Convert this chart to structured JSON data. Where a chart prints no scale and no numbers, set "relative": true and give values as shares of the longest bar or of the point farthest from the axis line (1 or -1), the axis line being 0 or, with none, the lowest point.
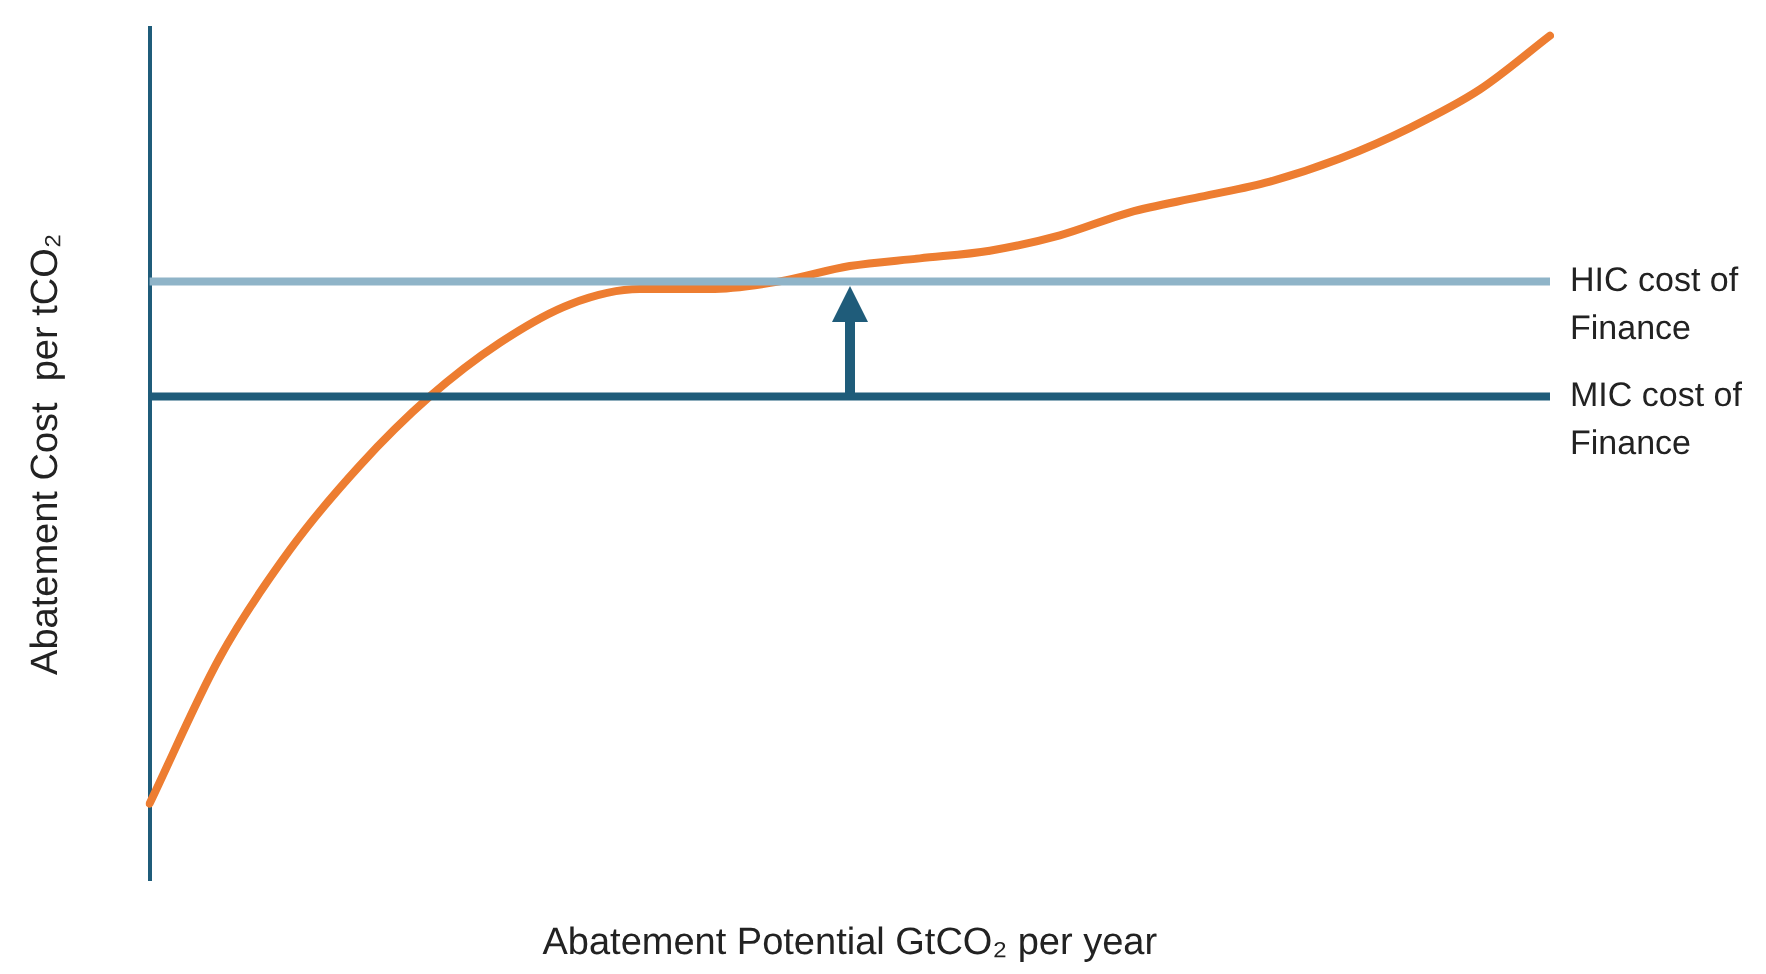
{
  "chart_data": {
    "type": "line",
    "relative": true,
    "xlabel": "Abatement Potential GtCO₂ per year",
    "ylabel": "Abatement Cost  per tCO₂",
    "categories": [
      null,
      null,
      null,
      null,
      null,
      null,
      null,
      null,
      null,
      null,
      null,
      null,
      null,
      null,
      null,
      null,
      null,
      null,
      null,
      null,
      null
    ],
    "series": [
      {
        "color": "#ed7d31",
        "values": [
          0,
          0.19,
          0.33,
          0.44,
          0.53,
          0.6,
          0.65,
          0.67,
          0.67,
          0.68,
          0.7,
          0.71,
          0.72,
          0.74,
          0.77,
          0.79,
          0.81,
          0.84,
          0.88,
          0.93,
          1
        ]
      }
    ],
    "ref_lines": [
      {
        "axis": "y",
        "value": 0.68,
        "label": "HIC cost of Finance",
        "color": "#8fb4c8"
      },
      {
        "axis": "y",
        "value": 0.53,
        "label": "MIC cost of Finance",
        "color": "#1f5c7a"
      }
    ],
    "grid": false,
    "legend": false,
    "marker": "none",
    "line_style": "solid"
  }
}
